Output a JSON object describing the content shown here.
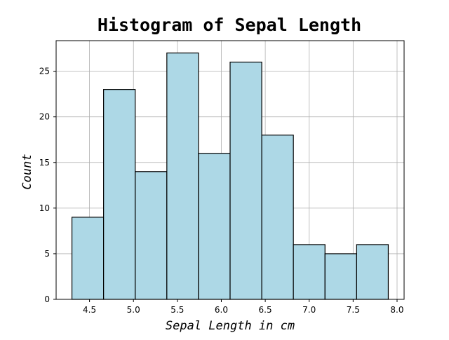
{
  "chart_data": {
    "type": "bar",
    "subtype": "histogram",
    "title": "Histogram of Sepal Length",
    "xlabel": "Sepal Length in cm",
    "ylabel": "Count",
    "bin_edges": [
      4.3,
      4.66,
      5.02,
      5.38,
      5.74,
      6.1,
      6.46,
      6.82,
      7.18,
      7.54,
      7.9
    ],
    "values": [
      9,
      23,
      14,
      27,
      16,
      26,
      18,
      6,
      5,
      6
    ],
    "xlim": [
      4.12,
      8.08
    ],
    "ylim": [
      0,
      28.35
    ],
    "xticks": [
      4.5,
      5.0,
      5.5,
      6.0,
      6.5,
      7.0,
      7.5,
      8.0
    ],
    "xtick_labels": [
      "4.5",
      "5.0",
      "5.5",
      "6.0",
      "6.5",
      "7.0",
      "7.5",
      "8.0"
    ],
    "yticks": [
      0,
      5,
      10,
      15,
      20,
      25
    ],
    "ytick_labels": [
      "0",
      "5",
      "10",
      "15",
      "20",
      "25"
    ],
    "grid": true,
    "bar_color": "#add8e6",
    "edge_color": "#000000",
    "grid_color": "#b0b0b0"
  }
}
